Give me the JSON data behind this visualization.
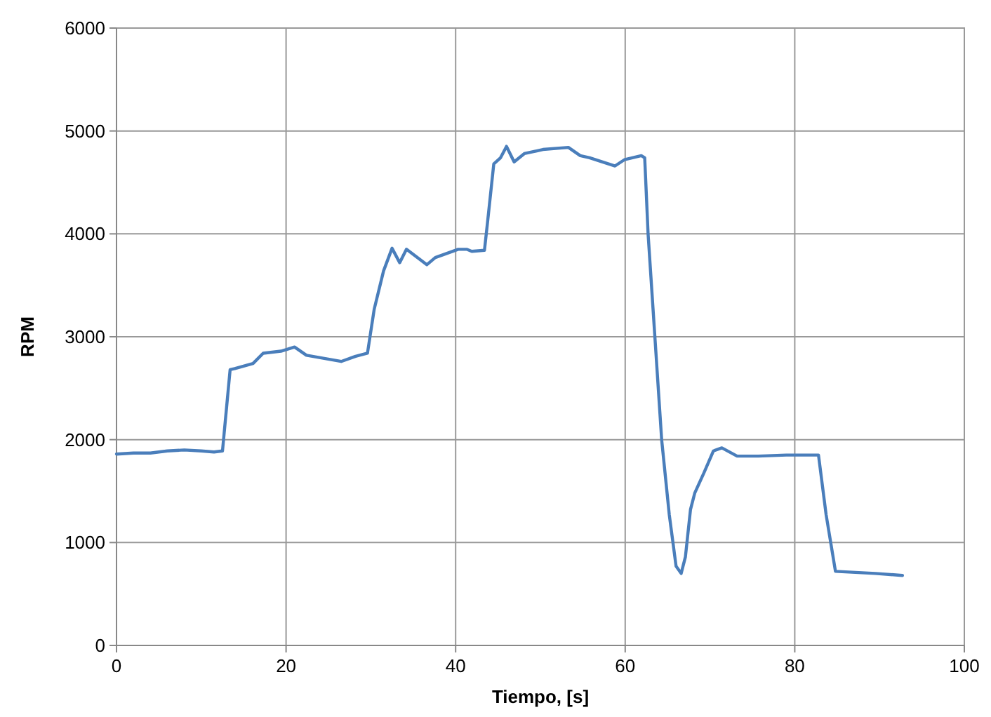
{
  "chart_data": {
    "type": "line",
    "xlabel": "Tiempo, [s]",
    "ylabel": "RPM",
    "xlim": [
      0,
      100
    ],
    "xticks": [
      0,
      20,
      40,
      60,
      80,
      100
    ],
    "ylim": [
      0,
      6000
    ],
    "yticks": [
      0,
      1000,
      2000,
      3000,
      4000,
      5000,
      6000
    ],
    "grid": true,
    "marker": "none",
    "line_style": "solid",
    "x": [
      0,
      2,
      4,
      6,
      8,
      10,
      11.5,
      12.5,
      13.4,
      13.95,
      16.1,
      17.3,
      19.4,
      21,
      22.4,
      26.5,
      28.2,
      29.6,
      30.4,
      31.5,
      32.5,
      33.4,
      34.2,
      36.6,
      37.6,
      40.3,
      41.3,
      41.9,
      43.4,
      43.8,
      44.5,
      45.3,
      46.0,
      46.9,
      48.1,
      50.3,
      53.3,
      54.7,
      55.8,
      58.8,
      59.9,
      61.9,
      62.3,
      62.7,
      63.5,
      64.3,
      65.2,
      66.0,
      66.6,
      67.1,
      67.7,
      68.2,
      69.3,
      70.4,
      71.4,
      73.2,
      75.7,
      79.0,
      82.8,
      83.7,
      84.8,
      89.5,
      92.7
    ],
    "series": [
      {
        "color": "#4a7ebb",
        "values": [
          1860,
          1870,
          1870,
          1890,
          1900,
          1890,
          1880,
          1890,
          2680,
          2690,
          2740,
          2840,
          2860,
          2900,
          2820,
          2760,
          2810,
          2840,
          3270,
          3640,
          3860,
          3720,
          3850,
          3700,
          3770,
          3850,
          3850,
          3830,
          3840,
          4140,
          4680,
          4740,
          4850,
          4700,
          4780,
          4820,
          4840,
          4760,
          4740,
          4660,
          4720,
          4760,
          4740,
          4000,
          3000,
          2000,
          1270,
          770,
          700,
          860,
          1320,
          1480,
          1680,
          1890,
          1920,
          1840,
          1840,
          1850,
          1850,
          1270,
          720,
          700,
          680
        ]
      }
    ]
  }
}
